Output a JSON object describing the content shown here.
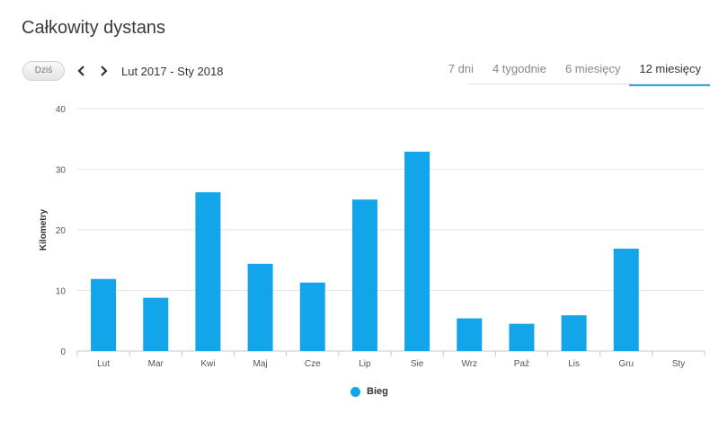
{
  "page": {
    "title": "Całkowity dystans"
  },
  "toolbar": {
    "today_label": "Dziś",
    "prev_icon": "chevron-left-icon",
    "next_icon": "chevron-right-icon",
    "date_range": "Lut 2017 - Sty 2018"
  },
  "tabs": [
    {
      "label": "7 dni",
      "active": false
    },
    {
      "label": "4 tygodnie",
      "active": false
    },
    {
      "label": "6 miesięcy",
      "active": false
    },
    {
      "label": "12 miesięcy",
      "active": true
    }
  ],
  "legend": {
    "label": "Bieg"
  },
  "colors": {
    "bar": "#12a5e9",
    "accent": "#29a8e3",
    "grid": "#e6e6e6"
  },
  "chart_data": {
    "type": "bar",
    "categories": [
      "Lut",
      "Mar",
      "Kwi",
      "Maj",
      "Cze",
      "Lip",
      "Sie",
      "Wrz",
      "Paź",
      "Lis",
      "Gru",
      "Sty"
    ],
    "series": [
      {
        "name": "Bieg",
        "values": [
          11.9,
          8.8,
          26.2,
          14.4,
          11.3,
          25.0,
          32.9,
          5.4,
          4.5,
          5.9,
          16.9,
          0
        ]
      }
    ],
    "ylabel": "Kilometry",
    "yticks": [
      0,
      10,
      20,
      30,
      40
    ],
    "ylim": [
      0,
      40
    ],
    "grid": true,
    "legend_position": "bottom-center"
  }
}
